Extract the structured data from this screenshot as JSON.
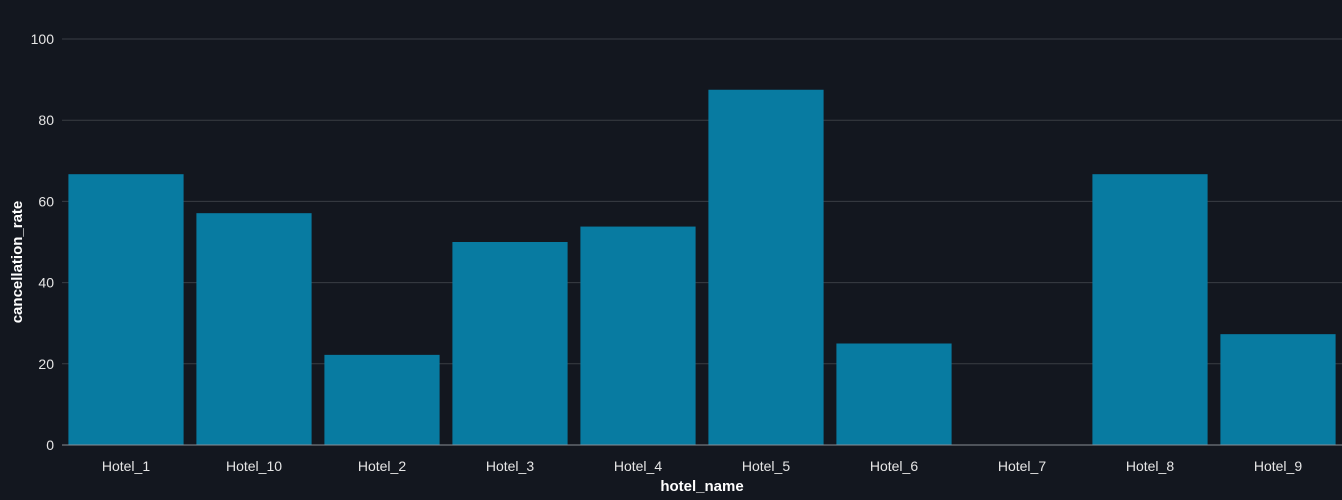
{
  "chart_data": {
    "type": "bar",
    "categories": [
      "Hotel_1",
      "Hotel_10",
      "Hotel_2",
      "Hotel_3",
      "Hotel_4",
      "Hotel_5",
      "Hotel_6",
      "Hotel_7",
      "Hotel_8",
      "Hotel_9"
    ],
    "values": [
      66.7,
      57.1,
      22.2,
      50.0,
      53.8,
      87.5,
      25.0,
      0,
      66.7,
      27.3
    ],
    "xlabel": "hotel_name",
    "ylabel": "cancellation_rate",
    "ylim": [
      0,
      100
    ],
    "yticks": [
      0,
      20,
      40,
      60,
      80,
      100
    ],
    "grid": true,
    "bar_color": "#087ba1",
    "background_color": "#13171f"
  }
}
